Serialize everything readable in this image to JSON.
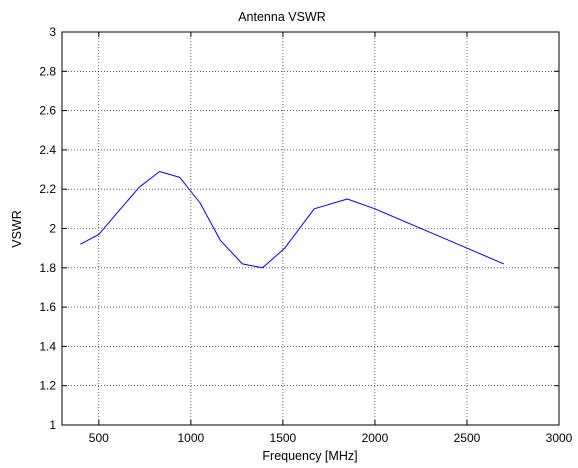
{
  "chart_data": {
    "type": "line",
    "title": "Antenna VSWR",
    "xlabel": "Frequency [MHz]",
    "ylabel": "VSWR",
    "xlim": [
      300,
      3000
    ],
    "ylim": [
      1,
      3
    ],
    "xticks": [
      500,
      1000,
      1500,
      2000,
      2500,
      3000
    ],
    "yticks": [
      1,
      1.2,
      1.4,
      1.6,
      1.8,
      2,
      2.2,
      2.4,
      2.6,
      2.8,
      3
    ],
    "grid": true,
    "grid_style": "dotted",
    "series": [
      {
        "color": "#0000ff",
        "x": [
          400,
          500,
          600,
          720,
          830,
          940,
          1050,
          1160,
          1280,
          1390,
          1510,
          1670,
          1850,
          2000,
          2200,
          2450,
          2700
        ],
        "y": [
          1.92,
          1.97,
          2.08,
          2.21,
          2.29,
          2.26,
          2.13,
          1.94,
          1.82,
          1.8,
          1.9,
          2.1,
          2.15,
          2.1,
          2.02,
          1.92,
          1.82
        ]
      }
    ]
  }
}
